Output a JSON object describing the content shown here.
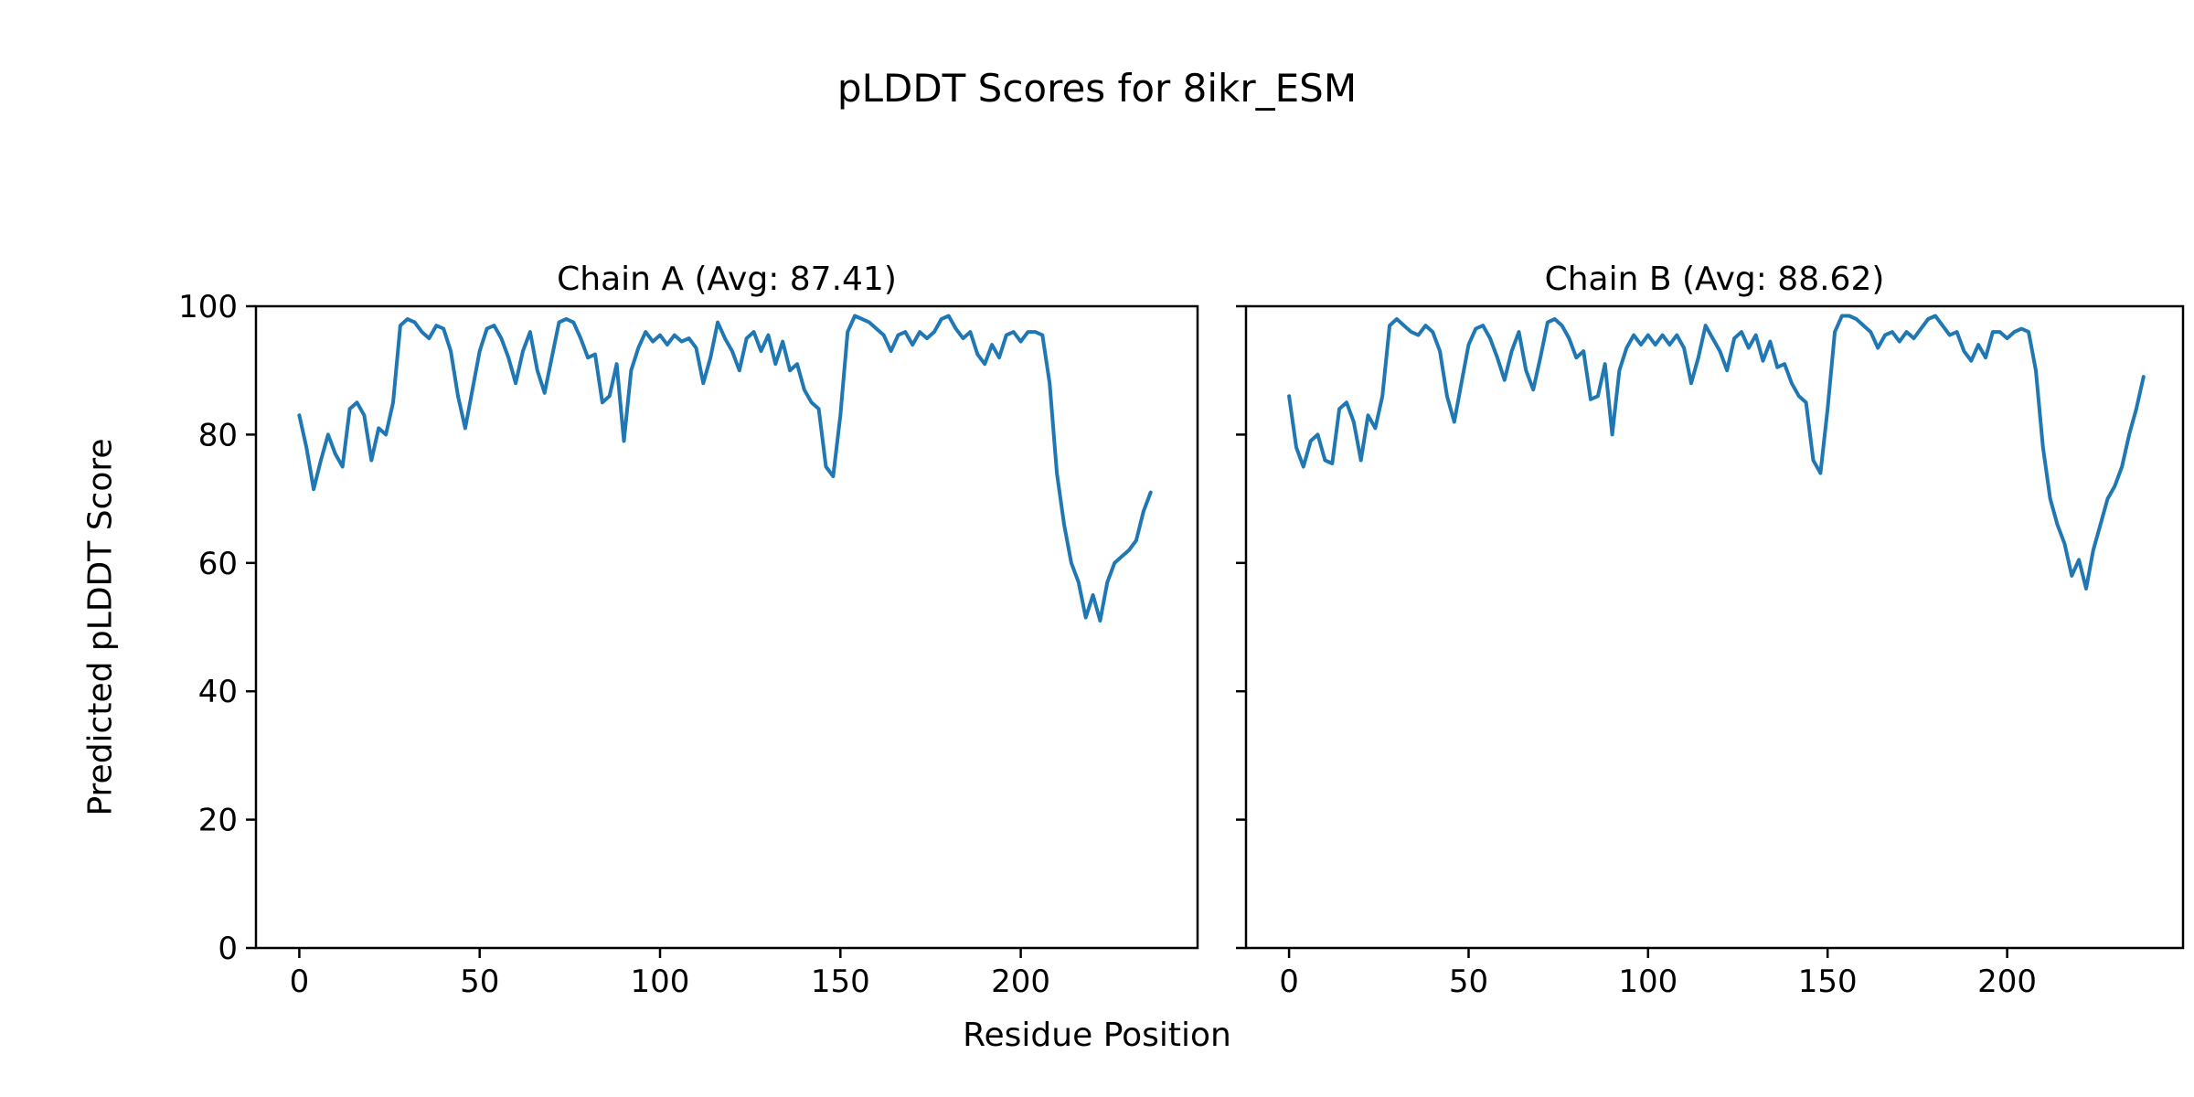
{
  "figure": {
    "title": "pLDDT Scores for 8ikr_ESM",
    "xlabel": "Residue Position",
    "ylabel": "Predicted pLDDT Score",
    "background_color": "#ffffff",
    "text_color": "#000000"
  },
  "chart_data": [
    {
      "type": "line",
      "name": "Chain A",
      "title": "Chain A (Avg: 87.41)",
      "avg": 87.41,
      "color": "#1f77b4",
      "xlim": [
        -12,
        249
      ],
      "ylim": [
        0,
        100
      ],
      "xticks": [
        0,
        50,
        100,
        150,
        200
      ],
      "yticks": [
        0,
        20,
        40,
        60,
        80,
        100
      ],
      "grid": false,
      "legend": "none",
      "x_start": 0,
      "x_step": 2,
      "values": [
        83,
        78,
        71.5,
        76,
        80,
        77,
        75,
        84,
        85,
        83,
        76,
        81,
        80,
        85,
        97,
        98,
        97.5,
        96,
        95,
        97,
        96.5,
        93,
        86,
        81,
        87,
        93,
        96.5,
        97,
        95,
        92,
        88,
        93,
        96,
        90,
        86.5,
        92,
        97.5,
        98,
        97.5,
        95,
        92,
        92.5,
        85,
        86,
        91,
        79,
        90,
        93.5,
        96,
        94.5,
        95.5,
        94,
        95.5,
        94.5,
        95,
        93.5,
        88,
        92,
        97.5,
        95,
        93,
        90,
        95,
        96,
        93,
        95.5,
        91,
        94.5,
        90,
        91,
        87,
        85,
        84,
        75,
        73.5,
        83,
        96,
        98.5,
        98,
        97.5,
        96.5,
        95.5,
        93,
        95.5,
        96,
        94,
        96,
        95,
        96,
        98,
        98.5,
        96.5,
        95,
        96,
        92.5,
        91,
        94,
        92,
        95.5,
        96,
        94.5,
        96,
        96,
        95.5,
        88,
        74,
        66,
        60,
        57,
        51.5,
        55,
        51,
        57,
        60,
        61,
        62,
        63.5,
        68,
        71
      ]
    },
    {
      "type": "line",
      "name": "Chain B",
      "title": "Chain B (Avg: 88.62)",
      "avg": 88.62,
      "color": "#1f77b4",
      "xlim": [
        -12,
        249
      ],
      "ylim": [
        0,
        100
      ],
      "xticks": [
        0,
        50,
        100,
        150,
        200
      ],
      "yticks": [
        0,
        20,
        40,
        60,
        80,
        100
      ],
      "grid": false,
      "legend": "none",
      "x_start": 0,
      "x_step": 2,
      "values": [
        86,
        78,
        75,
        79,
        80,
        76,
        75.5,
        84,
        85,
        82,
        76,
        83,
        81,
        86,
        97,
        98,
        97,
        96,
        95.5,
        97,
        96,
        93,
        86,
        82,
        88,
        94,
        96.5,
        97,
        95,
        92,
        88.5,
        93,
        96,
        90,
        87,
        92,
        97.5,
        98,
        97,
        95,
        92,
        93,
        85.5,
        86,
        91,
        80,
        90,
        93.5,
        95.5,
        94,
        95.5,
        94,
        95.5,
        94,
        95.5,
        93.5,
        88,
        92,
        97,
        95,
        93,
        90,
        95,
        96,
        93.5,
        95.5,
        91.5,
        94.5,
        90.5,
        91,
        88,
        86,
        85,
        76,
        74,
        84,
        96,
        98.5,
        98.5,
        98,
        97,
        96,
        93.5,
        95.5,
        96,
        94.5,
        96,
        95,
        96.5,
        98,
        98.5,
        97,
        95.5,
        96,
        93,
        91.5,
        94,
        92,
        96,
        96,
        95,
        96,
        96.5,
        96,
        90,
        78,
        70,
        66,
        63,
        58,
        60.5,
        56,
        62,
        66,
        70,
        72,
        75,
        80,
        84,
        89
      ]
    }
  ]
}
